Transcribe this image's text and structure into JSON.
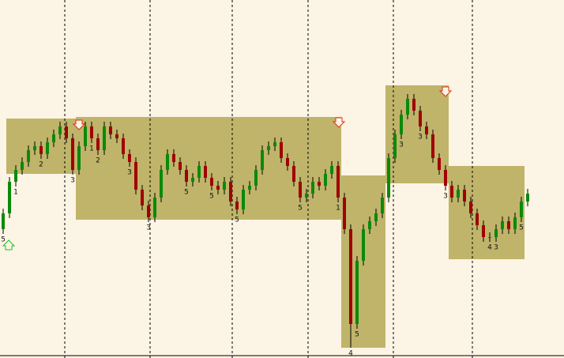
{
  "chart_data": {
    "type": "candlestick",
    "ylim": [
      0,
      453
    ],
    "open": [
      163,
      183,
      223,
      238,
      248,
      263,
      268,
      258,
      273,
      283,
      293,
      278,
      238,
      268,
      293,
      278,
      263,
      293,
      283,
      278,
      258,
      248,
      213,
      193,
      178,
      203,
      238,
      258,
      248,
      238,
      223,
      228,
      243,
      228,
      218,
      213,
      223,
      198,
      188,
      213,
      218,
      238,
      263,
      268,
      273,
      253,
      243,
      223,
      203,
      208,
      223,
      218,
      233,
      243,
      203,
      163,
      43,
      123,
      163,
      173,
      183,
      203,
      253,
      283,
      308,
      328,
      313,
      293,
      283,
      253,
      238,
      218,
      203,
      213,
      198,
      183,
      168,
      153,
      153,
      163,
      173,
      163,
      178,
      198
    ],
    "high": [
      189,
      229,
      244,
      254,
      269,
      274,
      274,
      279,
      289,
      299,
      299,
      284,
      274,
      299,
      299,
      284,
      299,
      299,
      289,
      284,
      264,
      254,
      219,
      199,
      209,
      244,
      264,
      264,
      254,
      244,
      234,
      249,
      249,
      234,
      224,
      229,
      229,
      204,
      219,
      224,
      244,
      269,
      274,
      279,
      279,
      259,
      249,
      229,
      214,
      229,
      229,
      239,
      249,
      249,
      209,
      169,
      129,
      169,
      179,
      189,
      209,
      259,
      289,
      314,
      334,
      334,
      319,
      299,
      289,
      259,
      244,
      224,
      219,
      219,
      204,
      189,
      174,
      159,
      169,
      179,
      179,
      184,
      204,
      214
    ],
    "low": [
      157,
      177,
      217,
      232,
      242,
      257,
      252,
      252,
      267,
      277,
      272,
      232,
      232,
      262,
      272,
      257,
      257,
      277,
      272,
      252,
      242,
      207,
      187,
      172,
      172,
      197,
      232,
      242,
      232,
      217,
      217,
      222,
      222,
      212,
      207,
      207,
      192,
      182,
      182,
      207,
      212,
      232,
      257,
      262,
      247,
      237,
      217,
      197,
      197,
      202,
      212,
      212,
      227,
      197,
      157,
      13,
      37,
      117,
      157,
      167,
      177,
      197,
      247,
      277,
      302,
      307,
      287,
      277,
      247,
      232,
      212,
      197,
      197,
      192,
      177,
      162,
      147,
      147,
      147,
      157,
      157,
      157,
      172,
      192
    ],
    "close": [
      183,
      223,
      238,
      248,
      263,
      268,
      258,
      273,
      283,
      293,
      278,
      238,
      268,
      293,
      278,
      263,
      293,
      283,
      278,
      258,
      248,
      213,
      193,
      178,
      203,
      238,
      258,
      248,
      238,
      223,
      228,
      243,
      228,
      218,
      213,
      223,
      198,
      188,
      213,
      218,
      238,
      263,
      268,
      273,
      253,
      243,
      223,
      203,
      208,
      223,
      218,
      233,
      243,
      203,
      163,
      43,
      123,
      163,
      173,
      183,
      203,
      253,
      283,
      308,
      328,
      313,
      293,
      283,
      253,
      238,
      218,
      203,
      213,
      198,
      183,
      168,
      153,
      153,
      163,
      173,
      163,
      178,
      198,
      208
    ],
    "up_color": "#0a8a0a",
    "down_color": "#a00000",
    "box_color": "#bfb46a",
    "boxes": [
      {
        "start": 1,
        "end": 11,
        "top": 303,
        "bottom": 233
      },
      {
        "start": 12,
        "end": 53,
        "top": 305,
        "bottom": 175
      },
      {
        "start": 54,
        "end": 60,
        "top": 231,
        "bottom": 13
      },
      {
        "start": 61,
        "end": 70,
        "top": 345,
        "bottom": 221
      },
      {
        "start": 71,
        "end": 82,
        "top": 243,
        "bottom": 125
      }
    ],
    "labels": [
      {
        "candle": 0,
        "text": "5"
      },
      {
        "candle": 2,
        "text": "1"
      },
      {
        "candle": 6,
        "text": "2"
      },
      {
        "candle": 11,
        "text": "3"
      },
      {
        "candle": 14,
        "text": "1"
      },
      {
        "candle": 15,
        "text": "2"
      },
      {
        "candle": 20,
        "text": "3"
      },
      {
        "candle": 23,
        "text": "3"
      },
      {
        "candle": 29,
        "text": "5"
      },
      {
        "candle": 33,
        "text": "5"
      },
      {
        "candle": 37,
        "text": "5"
      },
      {
        "candle": 47,
        "text": "5"
      },
      {
        "candle": 53,
        "text": "1"
      },
      {
        "candle": 55,
        "text": "4"
      },
      {
        "candle": 56,
        "text": "5"
      },
      {
        "candle": 63,
        "text": "3"
      },
      {
        "candle": 66,
        "text": "3"
      },
      {
        "candle": 70,
        "text": "3"
      },
      {
        "candle": 77,
        "text": "4"
      },
      {
        "candle": 78,
        "text": "3"
      },
      {
        "candle": 82,
        "text": "5"
      }
    ]
  }
}
